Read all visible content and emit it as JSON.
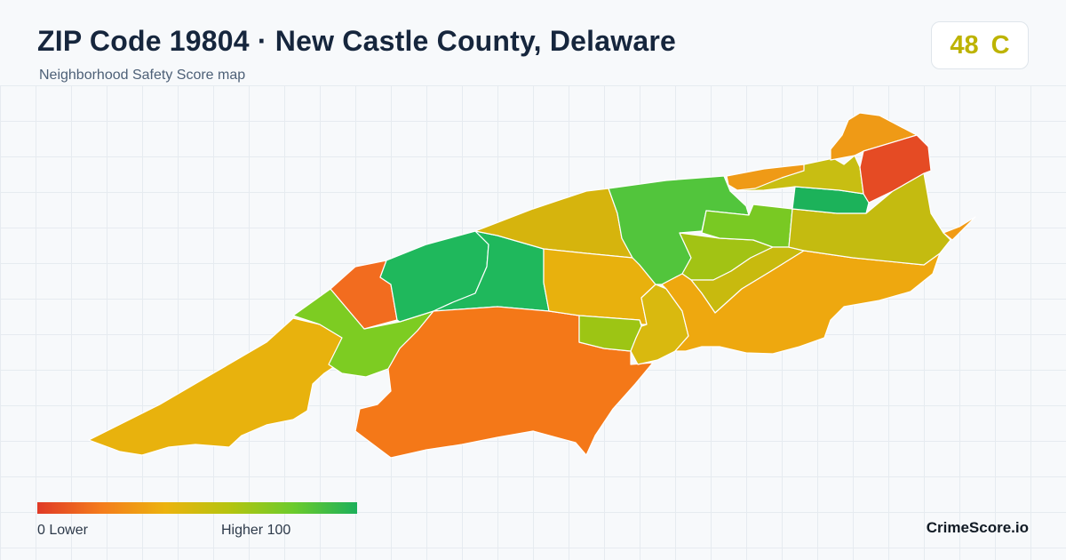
{
  "header": {
    "title": "ZIP Code 19804 · New Castle County, Delaware",
    "subtitle": "Neighborhood Safety Score map"
  },
  "score": {
    "value": "48",
    "grade": "C",
    "color": "#bdb300"
  },
  "legend": {
    "min_label": "0  Lower",
    "max_label": "Higher  100",
    "gradient": [
      "#e03a26",
      "#f47c1c",
      "#ecb30e",
      "#b5c40f",
      "#6ccb2c",
      "#1cb05a"
    ]
  },
  "regions": [
    {
      "id": "west-tail",
      "color": "#e8b20d"
    },
    {
      "id": "west-green",
      "color": "#7dcc22"
    },
    {
      "id": "west-orange",
      "color": "#f26c1f"
    },
    {
      "id": "northwest-green",
      "color": "#1fb85c"
    },
    {
      "id": "central-green",
      "color": "#1fb85c"
    },
    {
      "id": "central-north-yellow",
      "color": "#d6b40d"
    },
    {
      "id": "south-orange",
      "color": "#f47818"
    },
    {
      "id": "central-yellow",
      "color": "#e8b10d"
    },
    {
      "id": "small-lime",
      "color": "#9dc514"
    },
    {
      "id": "center-yellow",
      "color": "#d9b90f"
    },
    {
      "id": "north-green",
      "color": "#52c53c"
    },
    {
      "id": "mid-lime",
      "color": "#a2c314"
    },
    {
      "id": "lime-center",
      "color": "#79c923"
    },
    {
      "id": "east-large-orange",
      "color": "#eea80f"
    },
    {
      "id": "east-olive",
      "color": "#c8ba0e"
    },
    {
      "id": "east-olive-2",
      "color": "#c4bb10"
    },
    {
      "id": "northeast-green",
      "color": "#1cb25a"
    },
    {
      "id": "northeast-yellow",
      "color": "#c8be12"
    },
    {
      "id": "north-orange",
      "color": "#ef9a16"
    },
    {
      "id": "top-orange",
      "color": "#ef9a16"
    },
    {
      "id": "top-red",
      "color": "#e54b24"
    },
    {
      "id": "east-edge-orange",
      "color": "#f19a14"
    }
  ],
  "brand": "CrimeScore.io"
}
